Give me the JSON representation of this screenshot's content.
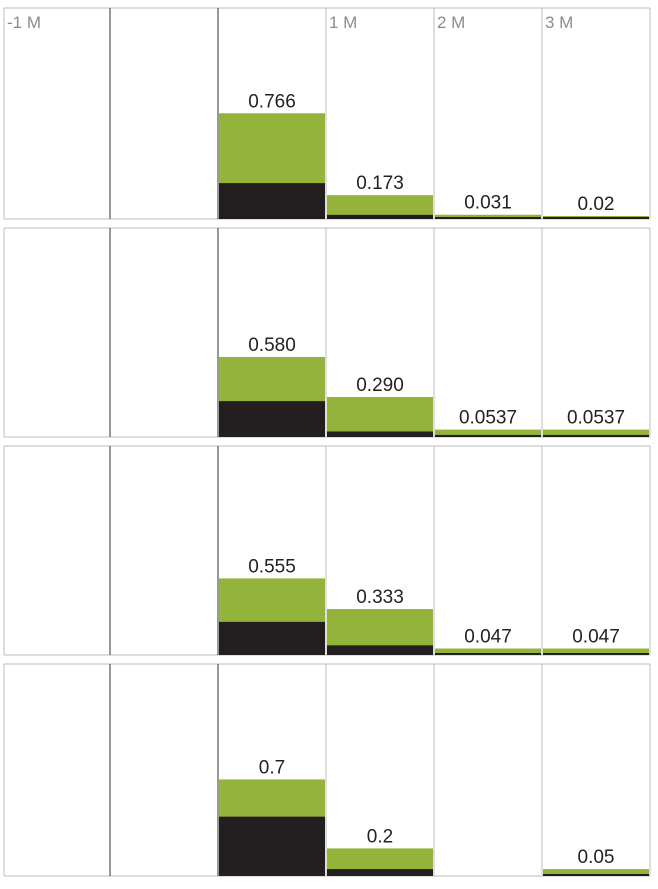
{
  "chart_data": {
    "type": "bar",
    "stacked": true,
    "categories": [
      "-1 M",
      "",
      "",
      "1 M",
      "2 M",
      "3 M"
    ],
    "column_headers": [
      "-1 M",
      "",
      "",
      "1 M",
      "2 M",
      "3 M"
    ],
    "ylim": [
      0,
      1
    ],
    "grid": true,
    "panels": [
      {
        "totals": [
          null,
          null,
          0.766,
          0.173,
          0.031,
          0.02
        ],
        "labels": [
          "",
          "",
          "0.766",
          "0.173",
          "0.031",
          "0.02"
        ],
        "dark": [
          null,
          null,
          0.26,
          0.03,
          0.01,
          0.005
        ]
      },
      {
        "totals": [
          null,
          null,
          0.58,
          0.29,
          0.0537,
          0.0537
        ],
        "labels": [
          "",
          "",
          "0.580",
          "0.290",
          "0.0537",
          "0.0537"
        ],
        "dark": [
          null,
          null,
          0.26,
          0.04,
          0.015,
          0.015
        ]
      },
      {
        "totals": [
          null,
          null,
          0.555,
          0.333,
          0.047,
          0.047
        ],
        "labels": [
          "",
          "",
          "0.555",
          "0.333",
          "0.047",
          "0.047"
        ],
        "dark": [
          null,
          null,
          0.24,
          0.07,
          0.01,
          0.005
        ]
      },
      {
        "totals": [
          null,
          null,
          0.7,
          0.2,
          null,
          0.05
        ],
        "labels": [
          "",
          "",
          "0.7",
          "0.2",
          "",
          "0.05"
        ],
        "dark": [
          null,
          null,
          0.43,
          0.05,
          null,
          0.01
        ]
      }
    ]
  },
  "colors": {
    "green": "#93b33a",
    "dark": "#231f20",
    "grid": "#bdbdbd",
    "header": "#8c8c8c",
    "label": "#222222"
  }
}
